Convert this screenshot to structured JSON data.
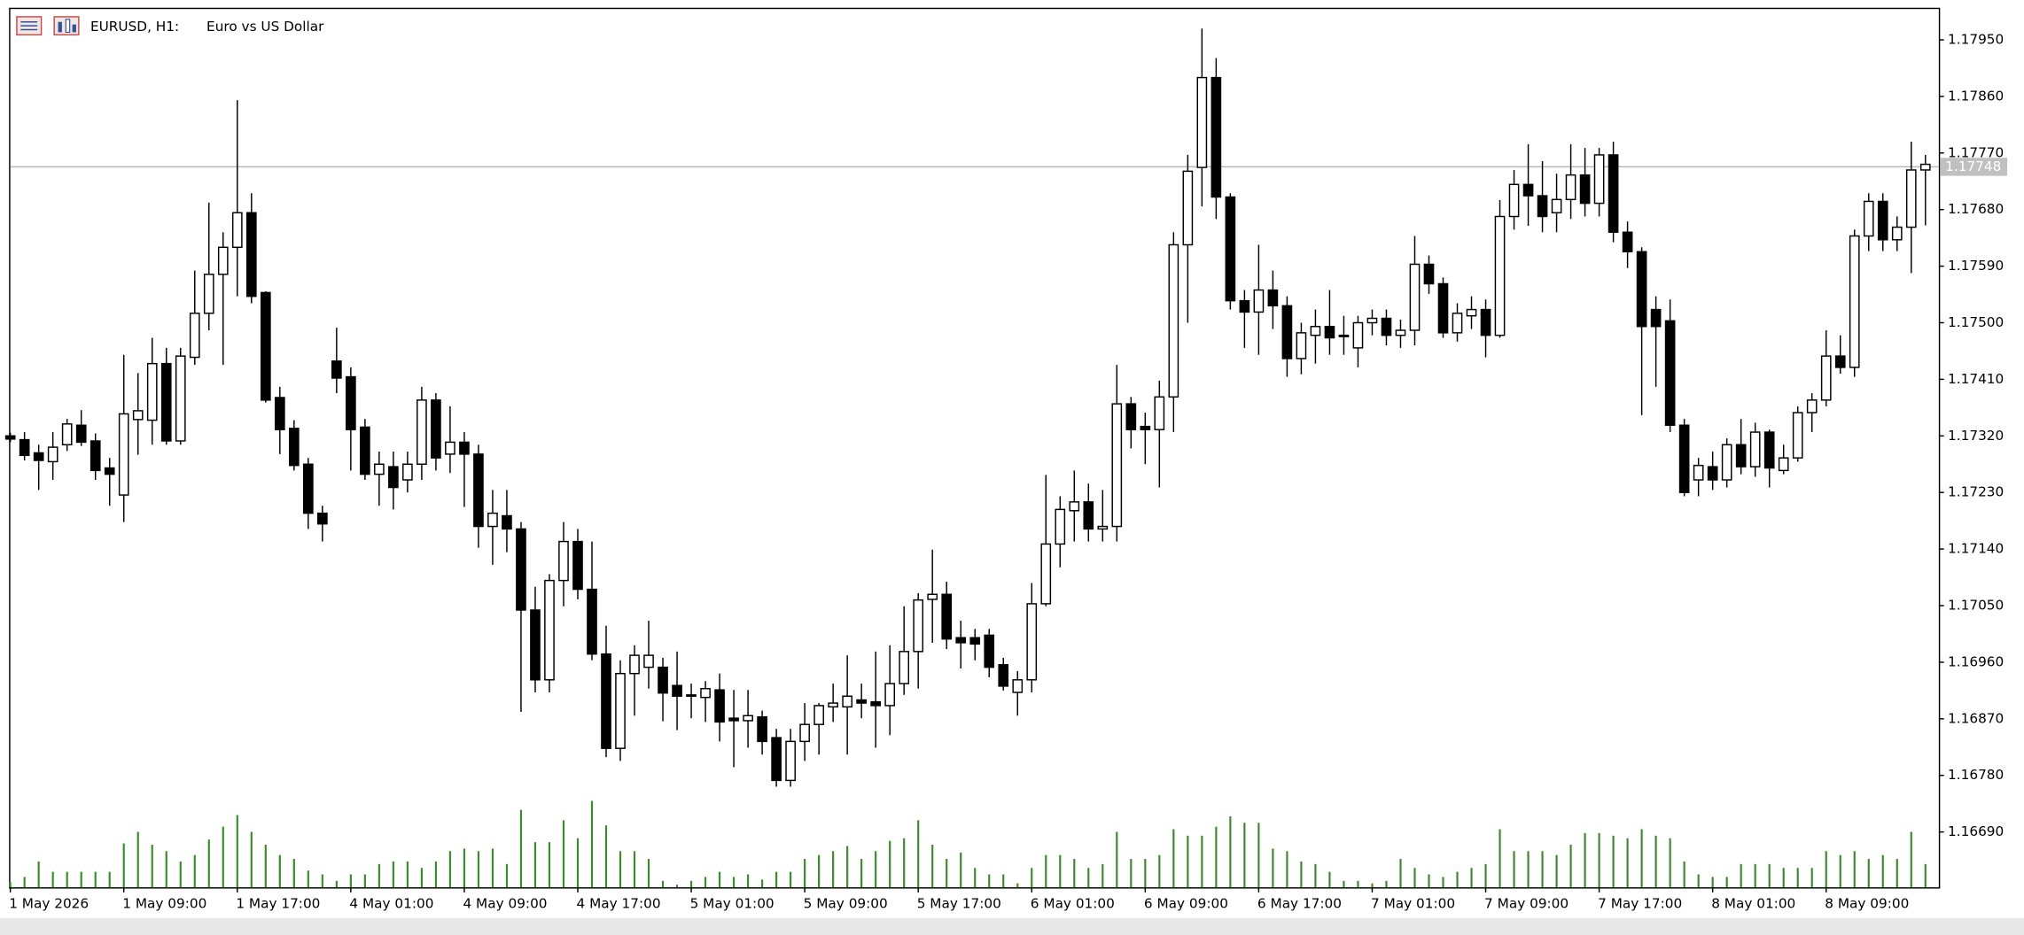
{
  "chart_data": {
    "type": "candlestick",
    "title": "EURUSD, H1:",
    "subtitle": "Euro vs US Dollar",
    "categories": [
      "1 May 2026",
      null,
      null,
      null,
      null,
      null,
      null,
      null,
      "1 May 09:00",
      null,
      null,
      null,
      null,
      null,
      null,
      null,
      "1 May 17:00",
      null,
      null,
      null,
      null,
      null,
      null,
      null,
      "4 May 01:00",
      null,
      null,
      null,
      null,
      null,
      null,
      null,
      "4 May 09:00",
      null,
      null,
      null,
      null,
      null,
      null,
      null,
      "4 May 17:00",
      null,
      null,
      null,
      null,
      null,
      null,
      null,
      "5 May 01:00",
      null,
      null,
      null,
      null,
      null,
      null,
      null,
      "5 May 09:00",
      null,
      null,
      null,
      null,
      null,
      null,
      null,
      "5 May 17:00",
      null,
      null,
      null,
      null,
      null,
      null,
      null,
      "6 May 01:00",
      null,
      null,
      null,
      null,
      null,
      null,
      null,
      "6 May 09:00",
      null,
      null,
      null,
      null,
      null,
      null,
      null,
      "6 May 17:00",
      null,
      null,
      null,
      null,
      null,
      null,
      null,
      "7 May 01:00",
      null,
      null,
      null,
      null,
      null,
      null,
      null,
      "7 May 09:00",
      null,
      null,
      null,
      null,
      null,
      null,
      null,
      "7 May 17:00",
      null,
      null,
      null,
      null,
      null,
      null,
      null,
      "8 May 01:00",
      null,
      null,
      null,
      null,
      null,
      null,
      null,
      "8 May 09:00",
      null,
      null,
      null,
      null,
      null,
      null,
      null
    ],
    "open": [
      1.1732,
      1.17314,
      1.17293,
      1.17279,
      1.17306,
      1.17337,
      1.17312,
      1.17269,
      1.17226,
      1.17346,
      1.17345,
      1.17435,
      1.17312,
      1.17445,
      1.17515,
      1.17577,
      1.1762,
      1.17675,
      1.17548,
      1.17381,
      1.17332,
      1.17275,
      1.17197,
      1.17439,
      1.17414,
      1.17334,
      1.17259,
      1.17271,
      1.1725,
      1.17275,
      1.17377,
      1.17291,
      1.1731,
      1.17291,
      1.17176,
      1.17193,
      1.17172,
      1.17043,
      1.16932,
      1.1709,
      1.17152,
      1.17076,
      1.16973,
      1.16823,
      1.16942,
      1.16952,
      1.16952,
      1.16923,
      1.16908,
      1.16904,
      1.16916,
      1.16871,
      1.16867,
      1.16873,
      1.1684,
      1.16772,
      1.16834,
      1.16861,
      1.16889,
      1.16889,
      1.169,
      1.16897,
      1.16891,
      1.16926,
      1.16977,
      1.1706,
      1.17068,
      1.16999,
      1.16999,
      1.17003,
      1.16956,
      1.16912,
      1.16932,
      1.17053,
      1.17148,
      1.17201,
      1.17215,
      1.17172,
      1.17176,
      1.17371,
      1.17335,
      1.1733,
      1.17382,
      1.17624,
      1.17747,
      1.1789,
      1.177,
      1.17535,
      1.17517,
      1.17552,
      1.17527,
      1.17443,
      1.1748,
      1.17494,
      1.1748,
      1.1746,
      1.175,
      1.17507,
      1.1748,
      1.17488,
      1.17593,
      1.17562,
      1.17484,
      1.17511,
      1.17521,
      1.1748,
      1.17669,
      1.1772,
      1.17702,
      1.17675,
      1.17696,
      1.17735,
      1.1769,
      1.17767,
      1.17644,
      1.17613,
      1.17521,
      1.17503,
      1.17337,
      1.1725,
      1.17271,
      1.1725,
      1.17306,
      1.17271,
      1.17326,
      1.17265,
      1.17285,
      1.17357,
      1.17377,
      1.17447,
      1.17429,
      1.17638,
      1.17693,
      1.17632,
      1.17652,
      1.17743
    ],
    "high": [
      1.17325,
      1.17326,
      1.17306,
      1.17326,
      1.17347,
      1.17361,
      1.17324,
      1.17285,
      1.17449,
      1.1742,
      1.17476,
      1.1746,
      1.1746,
      1.17583,
      1.17691,
      1.17644,
      1.17854,
      1.17706,
      1.1755,
      1.17398,
      1.17345,
      1.17285,
      1.17209,
      1.17492,
      1.17429,
      1.17347,
      1.17295,
      1.17295,
      1.17295,
      1.17398,
      1.17388,
      1.17367,
      1.17326,
      1.17306,
      1.17234,
      1.17234,
      1.17183,
      1.1708,
      1.171,
      1.17183,
      1.17172,
      1.17152,
      1.17018,
      1.16963,
      1.16987,
      1.17026,
      1.16967,
      1.16977,
      1.16926,
      1.1693,
      1.16942,
      1.16916,
      1.16916,
      1.16883,
      1.16854,
      1.16854,
      1.16895,
      1.16895,
      1.16926,
      1.16971,
      1.16926,
      1.16977,
      1.16987,
      1.17049,
      1.1707,
      1.17139,
      1.17088,
      1.17026,
      1.17013,
      1.17013,
      1.16967,
      1.16946,
      1.17086,
      1.17258,
      1.17224,
      1.17265,
      1.17244,
      1.17234,
      1.17433,
      1.17382,
      1.17357,
      1.17408,
      1.17644,
      1.17767,
      1.17968,
      1.17921,
      1.17706,
      1.17552,
      1.17624,
      1.17583,
      1.17542,
      1.175,
      1.17521,
      1.17552,
      1.17511,
      1.17511,
      1.17521,
      1.17521,
      1.17505,
      1.17638,
      1.17607,
      1.17572,
      1.17531,
      1.17542,
      1.17537,
      1.17695,
      1.17743,
      1.17784,
      1.17757,
      1.17737,
      1.17784,
      1.17778,
      1.17778,
      1.17788,
      1.17661,
      1.1762,
      1.17542,
      1.17537,
      1.17347,
      1.17285,
      1.17295,
      1.17316,
      1.17347,
      1.17341,
      1.1733,
      1.17306,
      1.17367,
      1.17388,
      1.17488,
      1.1748,
      1.17648,
      1.17706,
      1.17706,
      1.17669,
      1.17788,
      1.17767
    ],
    "low": [
      1.1731,
      1.17281,
      1.17234,
      1.1725,
      1.17296,
      1.17304,
      1.1725,
      1.17209,
      1.17183,
      1.1729,
      1.17306,
      1.17306,
      1.17306,
      1.17433,
      1.17488,
      1.17433,
      1.17542,
      1.17531,
      1.17373,
      1.17291,
      1.17265,
      1.17172,
      1.17152,
      1.17388,
      1.17265,
      1.1725,
      1.17209,
      1.17203,
      1.1723,
      1.1725,
      1.17265,
      1.17261,
      1.17207,
      1.17142,
      1.17115,
      1.17135,
      1.16881,
      1.16912,
      1.16912,
      1.17049,
      1.1706,
      1.16963,
      1.16809,
      1.16803,
      1.16875,
      1.16918,
      1.16866,
      1.16852,
      1.16871,
      1.16865,
      1.16834,
      1.16793,
      1.16824,
      1.16813,
      1.16762,
      1.16762,
      1.16803,
      1.16813,
      1.16865,
      1.16813,
      1.16871,
      1.16824,
      1.16844,
      1.16908,
      1.16918,
      1.16991,
      1.16981,
      1.1695,
      1.16963,
      1.16936,
      1.16915,
      1.16875,
      1.16912,
      1.17049,
      1.17111,
      1.17152,
      1.17152,
      1.17152,
      1.17152,
      1.173,
      1.17275,
      1.17238,
      1.17326,
      1.175,
      1.17685,
      1.17665,
      1.17521,
      1.1746,
      1.17449,
      1.1749,
      1.17414,
      1.17418,
      1.17435,
      1.17449,
      1.17449,
      1.17429,
      1.1748,
      1.17464,
      1.1746,
      1.17464,
      1.17546,
      1.17476,
      1.1747,
      1.1749,
      1.17445,
      1.17476,
      1.17648,
      1.17654,
      1.17644,
      1.17644,
      1.17665,
      1.17669,
      1.17669,
      1.17628,
      1.17587,
      1.17353,
      1.17398,
      1.17326,
      1.17224,
      1.17224,
      1.17234,
      1.17238,
      1.17259,
      1.17255,
      1.17238,
      1.17259,
      1.17279,
      1.17326,
      1.17367,
      1.17419,
      1.17414,
      1.17614,
      1.17614,
      1.17614,
      1.17579,
      1.17655
    ],
    "close": [
      1.17315,
      1.17289,
      1.17281,
      1.17302,
      1.17339,
      1.1731,
      1.17265,
      1.17259,
      1.17355,
      1.1736,
      1.17435,
      1.17312,
      1.17447,
      1.17515,
      1.17577,
      1.1762,
      1.17675,
      1.17542,
      1.17377,
      1.1733,
      1.17273,
      1.17197,
      1.1718,
      1.17412,
      1.1733,
      1.17259,
      1.17275,
      1.17238,
      1.17275,
      1.17377,
      1.17285,
      1.1731,
      1.17291,
      1.17176,
      1.17197,
      1.17172,
      1.17043,
      1.16932,
      1.1709,
      1.17152,
      1.17076,
      1.16973,
      1.16823,
      1.16942,
      1.16971,
      1.16971,
      1.16911,
      1.16906,
      1.16906,
      1.16918,
      1.16865,
      1.16867,
      1.16875,
      1.16834,
      1.16772,
      1.16834,
      1.16861,
      1.16891,
      1.16895,
      1.16906,
      1.16895,
      1.16891,
      1.16926,
      1.16977,
      1.17059,
      1.17068,
      1.16997,
      1.16991,
      1.16989,
      1.16952,
      1.16922,
      1.16932,
      1.17053,
      1.17148,
      1.17203,
      1.17215,
      1.17172,
      1.17176,
      1.17371,
      1.1733,
      1.1733,
      1.17382,
      1.17624,
      1.17741,
      1.1789,
      1.177,
      1.17535,
      1.17517,
      1.17552,
      1.17527,
      1.17443,
      1.17484,
      1.17494,
      1.17476,
      1.1748,
      1.175,
      1.17507,
      1.1748,
      1.17488,
      1.17593,
      1.17562,
      1.17484,
      1.17515,
      1.17521,
      1.1748,
      1.17669,
      1.1772,
      1.17702,
      1.17669,
      1.17696,
      1.17735,
      1.1769,
      1.17767,
      1.17644,
      1.17613,
      1.17494,
      1.17494,
      1.17337,
      1.1723,
      1.17273,
      1.1725,
      1.17306,
      1.17271,
      1.17326,
      1.17269,
      1.17285,
      1.17357,
      1.17377,
      1.17447,
      1.17429,
      1.17638,
      1.17693,
      1.17632,
      1.17652,
      1.17743,
      1.17752
    ],
    "volume": [
      4,
      8,
      20,
      12,
      12,
      12,
      12,
      12,
      34,
      43,
      33,
      28,
      20,
      25,
      37,
      47,
      56,
      43,
      33,
      25,
      22,
      13,
      10,
      5,
      10,
      10,
      18,
      20,
      20,
      15,
      20,
      28,
      30,
      28,
      30,
      18,
      60,
      35,
      35,
      52,
      38,
      67,
      48,
      28,
      28,
      22,
      5,
      2,
      5,
      8,
      12,
      8,
      10,
      6,
      12,
      12,
      22,
      25,
      28,
      32,
      22,
      28,
      36,
      38,
      52,
      33,
      22,
      27,
      15,
      10,
      10,
      3,
      15,
      25,
      25,
      22,
      15,
      18,
      43,
      22,
      22,
      25,
      45,
      40,
      40,
      47,
      55,
      50,
      50,
      30,
      28,
      20,
      18,
      12,
      5,
      5,
      3,
      5,
      22,
      15,
      10,
      8,
      12,
      15,
      18,
      45,
      28,
      28,
      28,
      25,
      33,
      42,
      42,
      40,
      38,
      45,
      40,
      38,
      20,
      10,
      8,
      8,
      18,
      18,
      18,
      15,
      15,
      15,
      28,
      25,
      28,
      22,
      25,
      22,
      43,
      18
    ],
    "up_color": "#ffffff",
    "down_color": "#000000",
    "volume_color": "#3d8b2f",
    "ylim": [
      1.16602,
      1.17999
    ],
    "yticks": [
      {
        "value": 1.1795,
        "label": "1.17950"
      },
      {
        "value": 1.1786,
        "label": "1.17860"
      },
      {
        "value": 1.1777,
        "label": "1.17770"
      },
      {
        "value": 1.1768,
        "label": "1.17680"
      },
      {
        "value": 1.1759,
        "label": "1.17590"
      },
      {
        "value": 1.175,
        "label": "1.17500"
      },
      {
        "value": 1.1741,
        "label": "1.17410"
      },
      {
        "value": 1.1732,
        "label": "1.17320"
      },
      {
        "value": 1.1723,
        "label": "1.17230"
      },
      {
        "value": 1.1714,
        "label": "1.17140"
      },
      {
        "value": 1.1705,
        "label": "1.17050"
      },
      {
        "value": 1.1696,
        "label": "1.16960"
      },
      {
        "value": 1.1687,
        "label": "1.16870"
      },
      {
        "value": 1.1678,
        "label": "1.16780"
      },
      {
        "value": 1.1669,
        "label": "1.16690"
      }
    ],
    "price_line": {
      "value": 1.17748,
      "label": "1.17748"
    }
  }
}
